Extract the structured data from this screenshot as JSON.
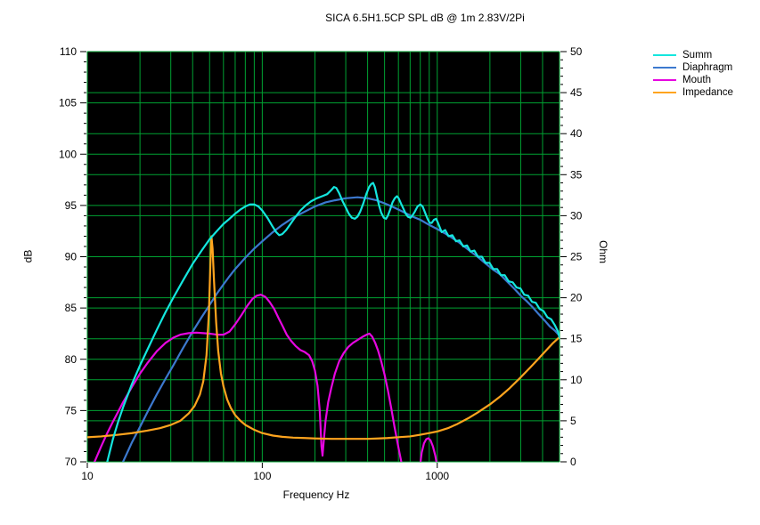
{
  "title": "SICA 6.5H1.5CP SPL dB @ 1m 2.83V/2Pi",
  "chart_data": {
    "type": "line",
    "title": "SICA 6.5H1.5CP SPL dB @ 1m 2.83V/2Pi",
    "xlabel": "Frequency Hz",
    "ylabel_left": "dB",
    "ylabel_right": "Ohm",
    "x_scale": "log",
    "x_range": [
      10,
      5000
    ],
    "x_major_ticks": [
      10,
      100,
      1000
    ],
    "y_left_range": [
      70,
      110
    ],
    "y_left_tick_step": 5,
    "y_left_ticks": [
      70,
      75,
      80,
      85,
      90,
      95,
      100,
      105,
      110
    ],
    "y_right_range": [
      0,
      50
    ],
    "y_right_tick_step": 5,
    "y_right_ticks": [
      0,
      5,
      10,
      15,
      20,
      25,
      30,
      35,
      40,
      45,
      50
    ],
    "grid": true,
    "grid_color": "#00A232",
    "plot_background": "#000000",
    "page_background": "#ffffff",
    "legend_position": "top-right",
    "series": [
      {
        "name": "Summ",
        "color": "#14E6DE",
        "axis": "left",
        "points": [
          [
            12,
            66
          ],
          [
            13,
            70
          ],
          [
            14,
            72.2
          ],
          [
            15,
            73.9
          ],
          [
            16,
            75.3
          ],
          [
            18,
            77.6
          ],
          [
            20,
            79.4
          ],
          [
            22,
            80.9
          ],
          [
            25,
            82.9
          ],
          [
            28,
            84.6
          ],
          [
            31,
            86
          ],
          [
            35,
            87.6
          ],
          [
            40,
            89.3
          ],
          [
            45,
            90.6
          ],
          [
            50,
            91.7
          ],
          [
            55,
            92.5
          ],
          [
            60,
            93.2
          ],
          [
            65,
            93.7
          ],
          [
            70,
            94.2
          ],
          [
            75,
            94.6
          ],
          [
            80,
            94.9
          ],
          [
            85,
            95.1
          ],
          [
            90,
            95.1
          ],
          [
            95,
            94.9
          ],
          [
            100,
            94.5
          ],
          [
            107,
            93.8
          ],
          [
            114,
            93
          ],
          [
            120,
            92.4
          ],
          [
            125,
            92.1
          ],
          [
            130,
            92.2
          ],
          [
            137,
            92.6
          ],
          [
            145,
            93.2
          ],
          [
            155,
            93.9
          ],
          [
            165,
            94.5
          ],
          [
            177,
            95
          ],
          [
            190,
            95.4
          ],
          [
            205,
            95.7
          ],
          [
            220,
            95.9
          ],
          [
            235,
            96.1
          ],
          [
            248,
            96.5
          ],
          [
            257,
            96.8
          ],
          [
            265,
            96.7
          ],
          [
            275,
            96.2
          ],
          [
            288,
            95.4
          ],
          [
            300,
            94.8
          ],
          [
            312,
            94.2
          ],
          [
            325,
            93.8
          ],
          [
            338,
            93.7
          ],
          [
            350,
            93.9
          ],
          [
            363,
            94.4
          ],
          [
            378,
            95.2
          ],
          [
            393,
            96.1
          ],
          [
            408,
            96.8
          ],
          [
            420,
            97.1
          ],
          [
            430,
            97.2
          ],
          [
            440,
            96.8
          ],
          [
            452,
            95.9
          ],
          [
            465,
            95
          ],
          [
            478,
            94.3
          ],
          [
            495,
            93.8
          ],
          [
            510,
            93.7
          ],
          [
            522,
            94
          ],
          [
            538,
            94.6
          ],
          [
            555,
            95.3
          ],
          [
            572,
            95.7
          ],
          [
            588,
            95.9
          ],
          [
            602,
            95.7
          ],
          [
            620,
            95.2
          ],
          [
            640,
            94.7
          ],
          [
            660,
            94.2
          ],
          [
            680,
            93.9
          ],
          [
            703,
            93.8
          ],
          [
            720,
            94
          ],
          [
            745,
            94.4
          ],
          [
            772,
            94.9
          ],
          [
            800,
            95.1
          ],
          [
            825,
            94.9
          ],
          [
            852,
            94.3
          ],
          [
            880,
            93.7
          ],
          [
            905,
            93.3
          ],
          [
            930,
            93.3
          ],
          [
            958,
            93.6
          ],
          [
            985,
            93.7
          ],
          [
            1010,
            93.3
          ],
          [
            1060,
            92.4
          ],
          [
            1110,
            92.6
          ],
          [
            1160,
            92
          ],
          [
            1220,
            92.1
          ],
          [
            1280,
            91.5
          ],
          [
            1340,
            91.6
          ],
          [
            1410,
            91
          ],
          [
            1480,
            91.1
          ],
          [
            1550,
            90.5
          ],
          [
            1630,
            90.6
          ],
          [
            1710,
            90
          ],
          [
            1800,
            90
          ],
          [
            1890,
            89.4
          ],
          [
            1990,
            89.4
          ],
          [
            2090,
            88.8
          ],
          [
            2200,
            88.8
          ],
          [
            2310,
            88.2
          ],
          [
            2430,
            88.2
          ],
          [
            2560,
            87.6
          ],
          [
            2700,
            87.5
          ],
          [
            2840,
            87
          ],
          [
            2990,
            86.9
          ],
          [
            3140,
            86.3
          ],
          [
            3310,
            86.2
          ],
          [
            3480,
            85.6
          ],
          [
            3660,
            85.5
          ],
          [
            3850,
            84.9
          ],
          [
            4050,
            84.7
          ],
          [
            4260,
            84.1
          ],
          [
            4480,
            83.9
          ],
          [
            4710,
            83.3
          ],
          [
            4900,
            82.7
          ],
          [
            5000,
            82.1
          ]
        ]
      },
      {
        "name": "Diaphragm",
        "color": "#3C79CF",
        "axis": "left",
        "points": [
          [
            14,
            67
          ],
          [
            16,
            70
          ],
          [
            18,
            71.9
          ],
          [
            20,
            73.4
          ],
          [
            22,
            74.8
          ],
          [
            25,
            76.6
          ],
          [
            28,
            78.1
          ],
          [
            31,
            79.4
          ],
          [
            35,
            81
          ],
          [
            40,
            82.7
          ],
          [
            45,
            84.1
          ],
          [
            50,
            85.3
          ],
          [
            55,
            86.4
          ],
          [
            60,
            87.3
          ],
          [
            65,
            88.1
          ],
          [
            70,
            88.8
          ],
          [
            80,
            89.9
          ],
          [
            90,
            90.8
          ],
          [
            100,
            91.5
          ],
          [
            115,
            92.4
          ],
          [
            130,
            93.1
          ],
          [
            150,
            93.8
          ],
          [
            175,
            94.4
          ],
          [
            200,
            94.9
          ],
          [
            230,
            95.3
          ],
          [
            260,
            95.5
          ],
          [
            300,
            95.7
          ],
          [
            350,
            95.8
          ],
          [
            400,
            95.7
          ],
          [
            450,
            95.5
          ],
          [
            500,
            95.2
          ],
          [
            550,
            94.9
          ],
          [
            600,
            94.6
          ],
          [
            660,
            94.25
          ],
          [
            726,
            93.9
          ],
          [
            800,
            93.6
          ],
          [
            900,
            93.1
          ],
          [
            1000,
            92.7
          ],
          [
            1100,
            92.3
          ],
          [
            1200,
            91.9
          ],
          [
            1330,
            91.4
          ],
          [
            1500,
            90.7
          ],
          [
            1700,
            90
          ],
          [
            1900,
            89.3
          ],
          [
            2100,
            88.7
          ],
          [
            2280,
            88.3
          ],
          [
            2500,
            87.6
          ],
          [
            2750,
            86.9
          ],
          [
            3000,
            86.2
          ],
          [
            3230,
            85.7
          ],
          [
            3500,
            85.1
          ],
          [
            3800,
            84.4
          ],
          [
            4100,
            83.8
          ],
          [
            4400,
            83.2
          ],
          [
            4700,
            82.8
          ],
          [
            5000,
            82.3
          ]
        ]
      },
      {
        "name": "Mouth",
        "color": "#E606E0",
        "axis": "left",
        "points": [
          [
            10,
            68.6
          ],
          [
            11,
            70
          ],
          [
            12,
            71.5
          ],
          [
            13,
            72.8
          ],
          [
            14,
            73.9
          ],
          [
            16,
            75.8
          ],
          [
            18,
            77.3
          ],
          [
            20,
            78.6
          ],
          [
            22,
            79.6
          ],
          [
            25,
            80.8
          ],
          [
            28,
            81.6
          ],
          [
            31,
            82.1
          ],
          [
            34,
            82.4
          ],
          [
            38,
            82.55
          ],
          [
            42,
            82.6
          ],
          [
            46,
            82.55
          ],
          [
            50,
            82.5
          ],
          [
            55,
            82.4
          ],
          [
            60,
            82.4
          ],
          [
            65,
            82.7
          ],
          [
            70,
            83.4
          ],
          [
            76,
            84.3
          ],
          [
            82,
            85.2
          ],
          [
            88,
            85.9
          ],
          [
            93,
            86.2
          ],
          [
            98,
            86.3
          ],
          [
            104,
            86.1
          ],
          [
            110,
            85.6
          ],
          [
            117,
            84.9
          ],
          [
            124,
            84
          ],
          [
            131,
            83.2
          ],
          [
            138,
            82.4
          ],
          [
            146,
            81.8
          ],
          [
            155,
            81.3
          ],
          [
            165,
            80.9
          ],
          [
            175,
            80.7
          ],
          [
            185,
            80.4
          ],
          [
            193,
            79.8
          ],
          [
            200,
            78.9
          ],
          [
            207,
            77.4
          ],
          [
            213,
            75
          ],
          [
            218,
            71.5
          ],
          [
            221,
            70.6
          ],
          [
            224,
            71.8
          ],
          [
            230,
            74
          ],
          [
            238,
            75.8
          ],
          [
            248,
            77.2
          ],
          [
            260,
            78.6
          ],
          [
            275,
            79.8
          ],
          [
            292,
            80.6
          ],
          [
            310,
            81.2
          ],
          [
            330,
            81.6
          ],
          [
            352,
            81.9
          ],
          [
            375,
            82.2
          ],
          [
            395,
            82.4
          ],
          [
            410,
            82.5
          ],
          [
            425,
            82.2
          ],
          [
            442,
            81.6
          ],
          [
            460,
            80.8
          ],
          [
            480,
            79.7
          ],
          [
            500,
            78.5
          ],
          [
            522,
            77
          ],
          [
            545,
            75.3
          ],
          [
            570,
            73.4
          ],
          [
            600,
            71.4
          ],
          [
            630,
            69.6
          ],
          [
            655,
            68
          ],
          [
            700,
            64
          ],
          [
            760,
            66.5
          ],
          [
            790,
            69
          ],
          [
            815,
            70.9
          ],
          [
            840,
            71.8
          ],
          [
            865,
            72.2
          ],
          [
            890,
            72.3
          ],
          [
            915,
            72.1
          ],
          [
            945,
            71.5
          ],
          [
            975,
            70.6
          ],
          [
            1005,
            69.3
          ],
          [
            1030,
            67
          ],
          [
            1060,
            62
          ]
        ]
      },
      {
        "name": "Impedance",
        "color": "#FFA41E",
        "axis": "right",
        "points": [
          [
            10,
            3
          ],
          [
            12,
            3.1
          ],
          [
            15,
            3.3
          ],
          [
            18,
            3.5
          ],
          [
            22,
            3.8
          ],
          [
            26,
            4.1
          ],
          [
            30,
            4.5
          ],
          [
            34,
            5
          ],
          [
            38,
            5.9
          ],
          [
            41,
            6.8
          ],
          [
            44,
            8.2
          ],
          [
            46,
            9.8
          ],
          [
            48,
            13
          ],
          [
            49.5,
            18
          ],
          [
            50.5,
            24
          ],
          [
            51.2,
            27.5
          ],
          [
            52,
            26
          ],
          [
            53,
            22
          ],
          [
            54.5,
            17
          ],
          [
            56,
            13.5
          ],
          [
            58,
            10.8
          ],
          [
            60,
            9.2
          ],
          [
            63,
            7.6
          ],
          [
            66,
            6.6
          ],
          [
            70,
            5.7
          ],
          [
            75,
            5
          ],
          [
            80,
            4.5
          ],
          [
            90,
            3.9
          ],
          [
            100,
            3.5
          ],
          [
            115,
            3.2
          ],
          [
            130,
            3.05
          ],
          [
            150,
            2.95
          ],
          [
            175,
            2.9
          ],
          [
            200,
            2.85
          ],
          [
            250,
            2.8
          ],
          [
            300,
            2.8
          ],
          [
            350,
            2.8
          ],
          [
            400,
            2.8
          ],
          [
            460,
            2.85
          ],
          [
            520,
            2.9
          ],
          [
            600,
            3
          ],
          [
            700,
            3.1
          ],
          [
            800,
            3.3
          ],
          [
            900,
            3.5
          ],
          [
            1000,
            3.7
          ],
          [
            1150,
            4.1
          ],
          [
            1300,
            4.6
          ],
          [
            1500,
            5.3
          ],
          [
            1700,
            6
          ],
          [
            2000,
            7
          ],
          [
            2300,
            8
          ],
          [
            2600,
            9
          ],
          [
            3000,
            10.3
          ],
          [
            3400,
            11.5
          ],
          [
            3800,
            12.6
          ],
          [
            4200,
            13.6
          ],
          [
            4600,
            14.5
          ],
          [
            5000,
            15.2
          ]
        ]
      }
    ]
  }
}
